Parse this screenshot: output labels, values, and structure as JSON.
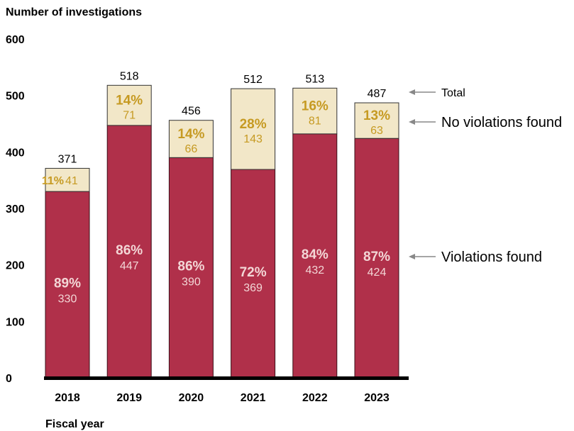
{
  "chart_data": {
    "type": "bar",
    "stacked": true,
    "title": "Number of investigations",
    "xlabel": "Fiscal year",
    "ylabel": "Number of investigations",
    "ylim": [
      0,
      600
    ],
    "yticks": [
      "0",
      "100",
      "200",
      "300",
      "400",
      "500",
      "600"
    ],
    "grid": false,
    "legend_position": "right",
    "categories": [
      "2018",
      "2019",
      "2020",
      "2021",
      "2022",
      "2023"
    ],
    "series": [
      {
        "name": "Violations found",
        "color": "#b0304a",
        "values": [
          330,
          447,
          390,
          369,
          432,
          424
        ],
        "percent_labels": [
          "89%",
          "86%",
          "86%",
          "72%",
          "84%",
          "87%"
        ]
      },
      {
        "name": "No violations found",
        "color": "#f2e7c8",
        "values": [
          41,
          71,
          66,
          143,
          81,
          63
        ],
        "percent_labels": [
          "11%",
          "14%",
          "14%",
          "28%",
          "16%",
          "13%"
        ]
      }
    ],
    "totals": [
      371,
      518,
      456,
      512,
      513,
      487
    ],
    "total_label": "Total",
    "colors": {
      "violations_fill": "#b0304a",
      "no_violations_fill": "#f2e7c8",
      "no_violations_text": "#c69a22",
      "violations_text": "#f3d6d6",
      "baseline": "#000000",
      "legend_arrow": "#888888"
    }
  }
}
